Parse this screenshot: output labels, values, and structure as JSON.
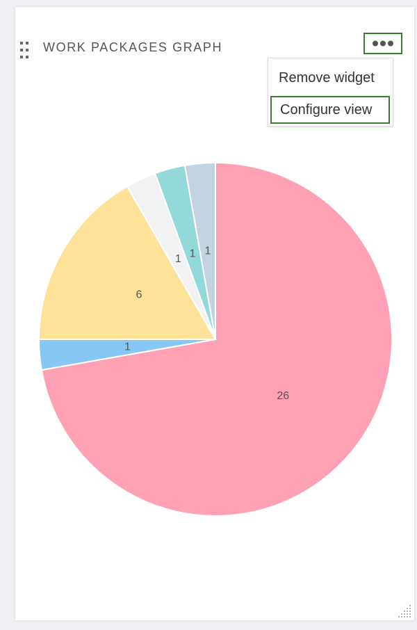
{
  "header": {
    "title": "WORK PACKAGES GRAPH"
  },
  "menu": {
    "items": [
      "Remove widget",
      "Configure view"
    ]
  },
  "chart_data": {
    "type": "pie",
    "values": [
      26,
      1,
      6,
      1,
      1,
      1
    ],
    "colors": [
      "#ffa1b5",
      "#86c7f3",
      "#ffe29a",
      "#f1f2f4",
      "#93d9d9",
      "#c2d4e0"
    ]
  }
}
